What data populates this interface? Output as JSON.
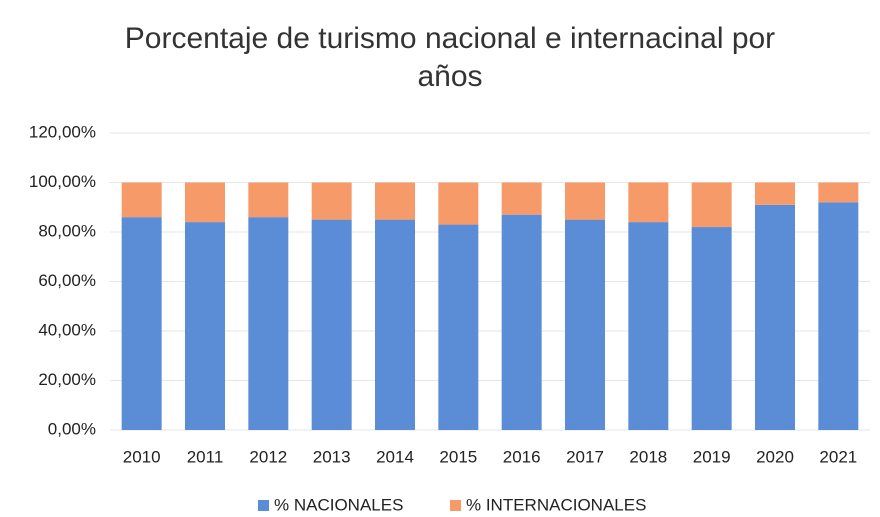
{
  "chart_data": {
    "type": "stacked_bar",
    "title": "Porcentaje de turismo nacional e internacinal por años",
    "categories": [
      "2010",
      "2011",
      "2012",
      "2013",
      "2014",
      "2015",
      "2016",
      "2017",
      "2018",
      "2019",
      "2020",
      "2021"
    ],
    "series": [
      {
        "name": "% NACIONALES",
        "color": "#5b8dd6",
        "values": [
          86,
          84,
          86,
          85,
          85,
          83,
          87,
          85,
          84,
          82,
          91,
          92
        ]
      },
      {
        "name": "% INTERNACIONALES",
        "color": "#f79a6a",
        "values": [
          14,
          16,
          14,
          15,
          15,
          17,
          13,
          15,
          16,
          18,
          9,
          8
        ]
      }
    ],
    "ylim": [
      0,
      120
    ],
    "yticks": [
      {
        "value": 0,
        "label": "0,00%"
      },
      {
        "value": 20,
        "label": "20,00%"
      },
      {
        "value": 40,
        "label": "40,00%"
      },
      {
        "value": 60,
        "label": "60,00%"
      },
      {
        "value": 80,
        "label": "80,00%"
      },
      {
        "value": 100,
        "label": "100,00%"
      },
      {
        "value": 120,
        "label": "120,00%"
      }
    ],
    "grid": true,
    "legend": "bottom"
  }
}
